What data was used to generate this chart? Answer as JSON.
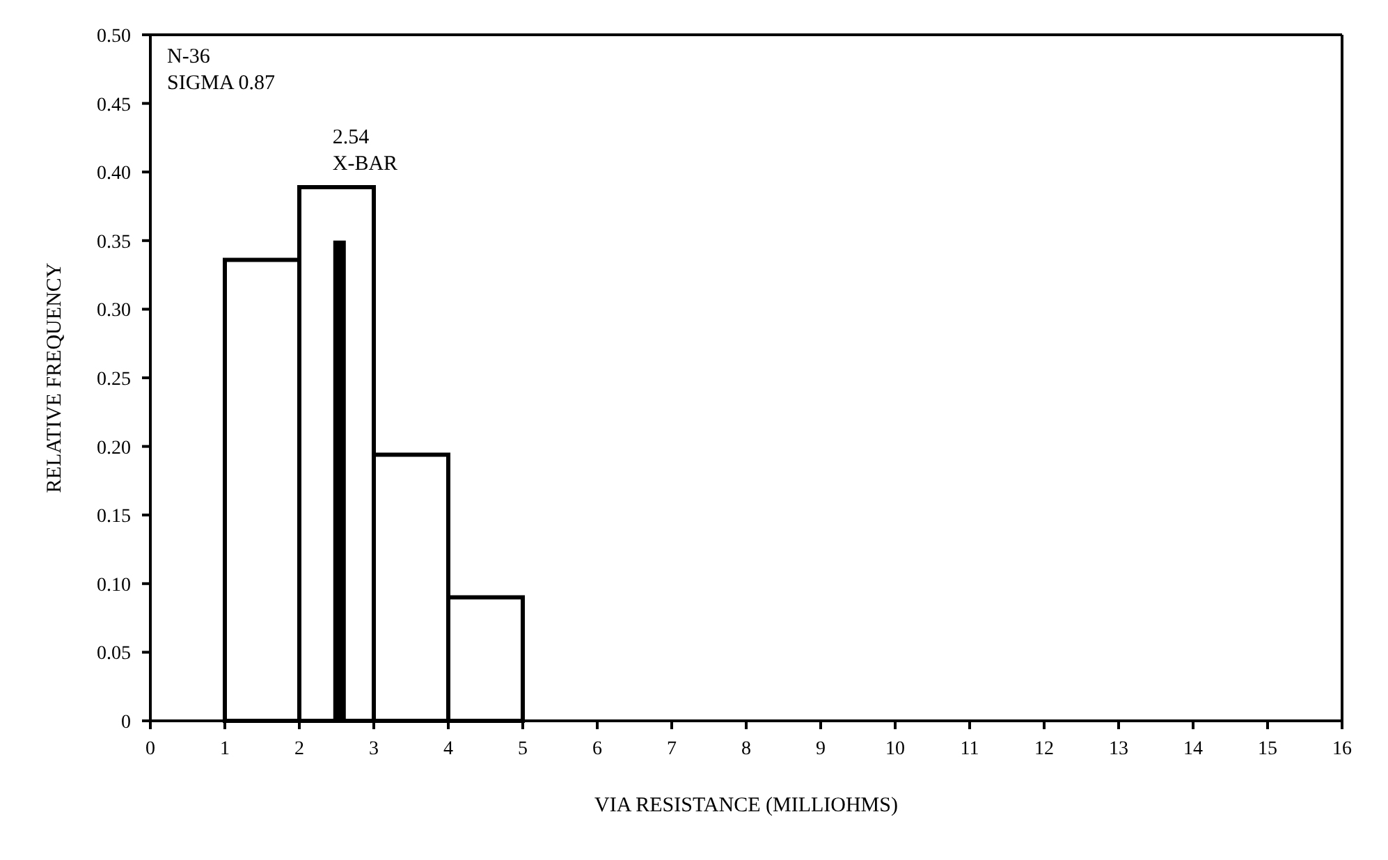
{
  "chart_data": {
    "type": "histogram",
    "xlabel": "VIA RESISTANCE (MILLIOHMS)",
    "ylabel": "RELATIVE FREQUENCY",
    "bins": [
      1,
      2,
      3,
      4,
      5
    ],
    "values": [
      0.336,
      0.389,
      0.194,
      0.09
    ],
    "color": "#ffffff",
    "series": [
      {
        "type": "bar",
        "name": "2.54 X-BAR",
        "x": [
          2.54
        ],
        "values": [
          0.35
        ],
        "color": "#000000"
      }
    ],
    "annotations": [
      "N-36",
      "SIGMA 0.87"
    ],
    "xlim": [
      0,
      16
    ],
    "xticks": [
      0,
      1,
      2,
      3,
      4,
      5,
      6,
      7,
      8,
      9,
      10,
      11,
      12,
      13,
      14,
      15,
      16
    ],
    "ylim": [
      0,
      0.5
    ],
    "yticks": [
      {
        "value": 0,
        "label": "0"
      },
      {
        "value": 0.05,
        "label": "0.05"
      },
      {
        "value": 0.1,
        "label": "0.10"
      },
      {
        "value": 0.15,
        "label": "0.15"
      },
      {
        "value": 0.2,
        "label": "0.20"
      },
      {
        "value": 0.25,
        "label": "0.25"
      },
      {
        "value": 0.3,
        "label": "0.30"
      },
      {
        "value": 0.35,
        "label": "0.35"
      },
      {
        "value": 0.4,
        "label": "0.40"
      },
      {
        "value": 0.45,
        "label": "0.45"
      },
      {
        "value": 0.5,
        "label": "0.50"
      }
    ],
    "grid": false
  }
}
